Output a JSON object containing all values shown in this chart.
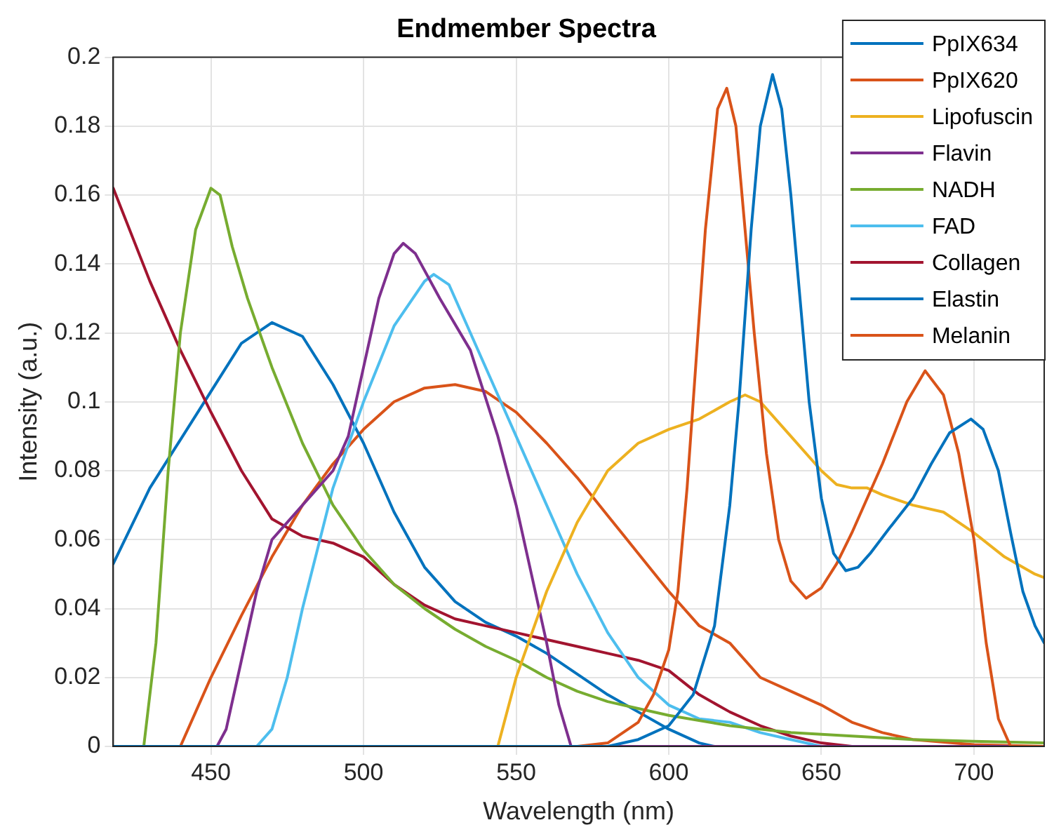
{
  "chart_data": {
    "type": "line",
    "title": "Endmember Spectra",
    "xlabel": "Wavelength (nm)",
    "ylabel": "Intensity (a.u.)",
    "xlim": [
      418,
      723
    ],
    "xticks": [
      450,
      500,
      550,
      600,
      650,
      700
    ],
    "ylim": [
      0,
      0.2
    ],
    "yticks": [
      0,
      0.02,
      0.04,
      0.06,
      0.08,
      0.1,
      0.12,
      0.14,
      0.16,
      0.18,
      0.2
    ],
    "grid": true,
    "legend": "top right",
    "marker": "none",
    "line_style": "solid",
    "series": [
      {
        "name": "PpIX634",
        "color": "#0072bd",
        "x": [
          418,
          580,
          590,
          600,
          608,
          615,
          620,
          623,
          627,
          630,
          634,
          637,
          640,
          643,
          646,
          650,
          654,
          658,
          662,
          666,
          672,
          680,
          686,
          692,
          699,
          703,
          708,
          712,
          716,
          720,
          723
        ],
        "values": [
          0,
          0,
          0.002,
          0.006,
          0.015,
          0.035,
          0.07,
          0.1,
          0.15,
          0.18,
          0.195,
          0.185,
          0.16,
          0.13,
          0.1,
          0.072,
          0.056,
          0.051,
          0.052,
          0.056,
          0.063,
          0.072,
          0.082,
          0.091,
          0.095,
          0.092,
          0.08,
          0.062,
          0.045,
          0.035,
          0.03
        ]
      },
      {
        "name": "PpIX620",
        "color": "#d95319",
        "x": [
          418,
          570,
          580,
          590,
          595,
          600,
          603,
          606,
          608,
          612,
          616,
          619,
          622,
          625,
          628,
          632,
          636,
          640,
          645,
          650,
          655,
          660,
          670,
          678,
          684,
          690,
          695,
          700,
          704,
          708,
          712,
          723
        ],
        "values": [
          0,
          0,
          0.001,
          0.007,
          0.015,
          0.028,
          0.045,
          0.075,
          0.1,
          0.15,
          0.185,
          0.191,
          0.18,
          0.15,
          0.12,
          0.085,
          0.06,
          0.048,
          0.043,
          0.046,
          0.053,
          0.062,
          0.082,
          0.1,
          0.109,
          0.102,
          0.085,
          0.06,
          0.03,
          0.008,
          0,
          0
        ]
      },
      {
        "name": "Lipofuscin",
        "color": "#edb120",
        "x": [
          418,
          544,
          550,
          560,
          570,
          580,
          590,
          600,
          610,
          620,
          625,
          630,
          640,
          650,
          655,
          660,
          665,
          670,
          680,
          690,
          700,
          710,
          720,
          723
        ],
        "values": [
          0,
          0,
          0.02,
          0.045,
          0.065,
          0.08,
          0.088,
          0.092,
          0.095,
          0.1,
          0.102,
          0.1,
          0.09,
          0.08,
          0.076,
          0.075,
          0.075,
          0.073,
          0.07,
          0.068,
          0.062,
          0.055,
          0.05,
          0.049
        ]
      },
      {
        "name": "Flavin",
        "color": "#7e2f8e",
        "x": [
          418,
          452,
          455,
          460,
          465,
          470,
          480,
          490,
          495,
          500,
          505,
          510,
          513,
          517,
          525,
          535,
          544,
          550,
          555,
          560,
          564,
          568,
          723
        ],
        "values": [
          0,
          0,
          0.005,
          0.025,
          0.045,
          0.06,
          0.07,
          0.08,
          0.09,
          0.11,
          0.13,
          0.143,
          0.146,
          0.143,
          0.13,
          0.115,
          0.09,
          0.07,
          0.05,
          0.03,
          0.012,
          0,
          0
        ]
      },
      {
        "name": "NADH",
        "color": "#77ac30",
        "x": [
          418,
          428,
          432,
          436,
          440,
          445,
          450,
          453,
          457,
          462,
          470,
          480,
          490,
          500,
          510,
          520,
          530,
          540,
          550,
          560,
          570,
          580,
          590,
          600,
          620,
          640,
          660,
          680,
          700,
          723
        ],
        "values": [
          0,
          0,
          0.03,
          0.08,
          0.12,
          0.15,
          0.162,
          0.16,
          0.145,
          0.13,
          0.11,
          0.088,
          0.07,
          0.057,
          0.047,
          0.04,
          0.034,
          0.029,
          0.025,
          0.02,
          0.016,
          0.013,
          0.011,
          0.009,
          0.006,
          0.004,
          0.003,
          0.002,
          0.0015,
          0.001
        ]
      },
      {
        "name": "FAD",
        "color": "#4dbeee",
        "x": [
          418,
          465,
          470,
          475,
          480,
          490,
          500,
          510,
          520,
          523,
          528,
          535,
          545,
          550,
          560,
          570,
          580,
          590,
          600,
          610,
          620,
          630,
          640,
          650,
          723
        ],
        "values": [
          0,
          0,
          0.005,
          0.02,
          0.04,
          0.075,
          0.1,
          0.122,
          0.135,
          0.137,
          0.134,
          0.12,
          0.1,
          0.09,
          0.07,
          0.05,
          0.033,
          0.02,
          0.012,
          0.008,
          0.007,
          0.004,
          0.002,
          0,
          0
        ]
      },
      {
        "name": "Collagen",
        "color": "#a2142f",
        "x": [
          418,
          430,
          440,
          450,
          460,
          470,
          480,
          490,
          500,
          510,
          520,
          530,
          540,
          550,
          560,
          570,
          580,
          590,
          600,
          610,
          620,
          630,
          640,
          650,
          660,
          723
        ],
        "values": [
          0.162,
          0.135,
          0.115,
          0.097,
          0.08,
          0.066,
          0.061,
          0.059,
          0.055,
          0.047,
          0.041,
          0.037,
          0.035,
          0.033,
          0.031,
          0.029,
          0.027,
          0.025,
          0.022,
          0.015,
          0.01,
          0.006,
          0.003,
          0.001,
          0,
          0
        ]
      },
      {
        "name": "Elastin",
        "color": "#0072bd",
        "x": [
          418,
          430,
          450,
          460,
          470,
          480,
          490,
          500,
          510,
          520,
          530,
          540,
          550,
          560,
          570,
          580,
          590,
          600,
          610,
          615,
          723
        ],
        "values": [
          0.053,
          0.075,
          0.103,
          0.117,
          0.123,
          0.119,
          0.105,
          0.088,
          0.068,
          0.052,
          0.042,
          0.036,
          0.032,
          0.027,
          0.021,
          0.015,
          0.01,
          0.005,
          0.001,
          0,
          0
        ]
      },
      {
        "name": "Melanin",
        "color": "#d95319",
        "x": [
          418,
          440,
          450,
          460,
          470,
          480,
          490,
          500,
          510,
          520,
          530,
          540,
          550,
          560,
          570,
          580,
          590,
          600,
          610,
          620,
          630,
          640,
          650,
          660,
          670,
          680,
          700,
          723
        ],
        "values": [
          0,
          0,
          0.02,
          0.038,
          0.055,
          0.07,
          0.082,
          0.092,
          0.1,
          0.104,
          0.105,
          0.103,
          0.097,
          0.088,
          0.078,
          0.067,
          0.056,
          0.045,
          0.035,
          0.03,
          0.02,
          0.016,
          0.012,
          0.007,
          0.004,
          0.002,
          0.0005,
          0
        ]
      }
    ]
  }
}
